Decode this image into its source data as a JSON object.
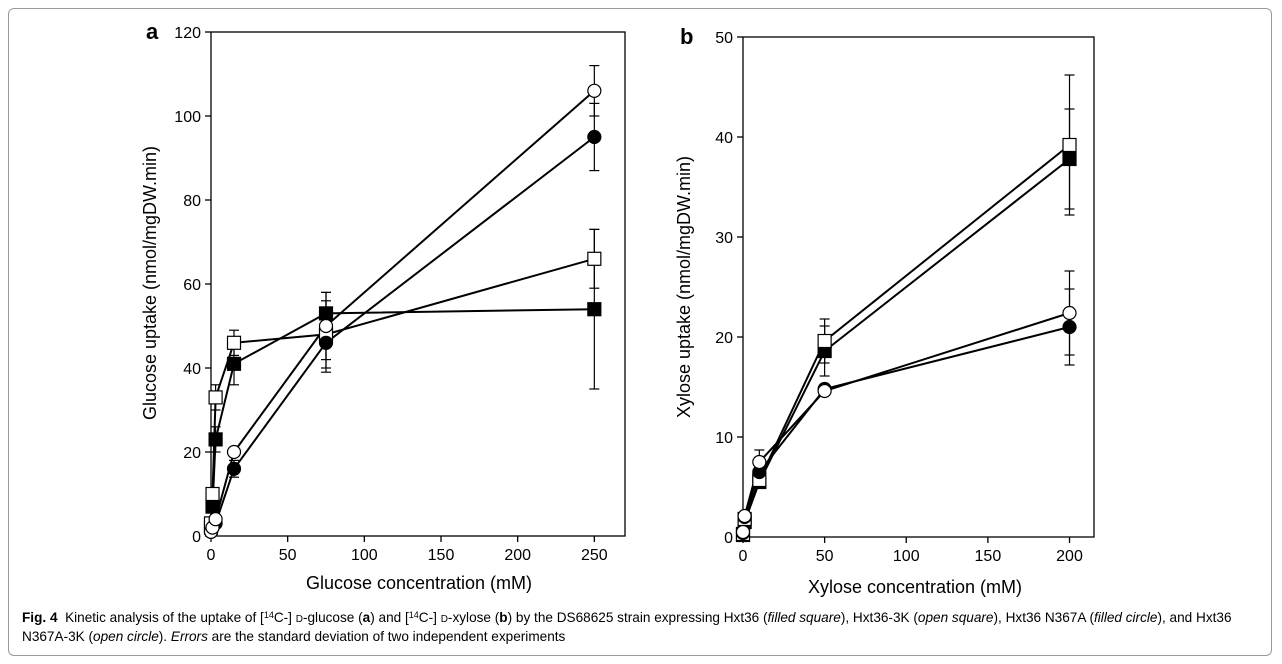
{
  "chart_data": [
    {
      "type": "line",
      "panel": "a",
      "xlabel": "Glucose concentration (mM)",
      "ylabel": "Glucose uptake (nmol/mgDW.min)",
      "xlim": [
        0,
        270
      ],
      "ylim": [
        0,
        120
      ],
      "xticks": [
        0,
        50,
        100,
        150,
        200,
        250
      ],
      "yticks": [
        0,
        20,
        40,
        60,
        80,
        100,
        120
      ],
      "grid": false,
      "legend": "none",
      "series": [
        {
          "marker": "filled-square",
          "x": [
            0,
            1,
            3,
            15,
            75,
            250
          ],
          "y": [
            2,
            7,
            23,
            41,
            53,
            54
          ],
          "err": [
            0,
            1,
            3,
            5,
            5,
            19
          ]
        },
        {
          "marker": "open-square",
          "x": [
            0,
            1,
            3,
            15,
            75,
            250
          ],
          "y": [
            3,
            10,
            33,
            46,
            48,
            66
          ],
          "err": [
            0,
            1,
            3,
            3,
            8,
            7
          ]
        },
        {
          "marker": "filled-circle",
          "x": [
            0,
            1,
            3,
            15,
            75,
            250
          ],
          "y": [
            1,
            2,
            3,
            16,
            46,
            95
          ],
          "err": [
            0,
            0,
            0,
            2,
            7,
            8
          ]
        },
        {
          "marker": "open-circle",
          "x": [
            0,
            1,
            3,
            15,
            75,
            250
          ],
          "y": [
            1,
            2,
            4,
            20,
            50,
            106
          ],
          "err": [
            0,
            0,
            0,
            0,
            8,
            6
          ]
        }
      ]
    },
    {
      "type": "line",
      "panel": "b",
      "xlabel": "Xylose concentration (mM)",
      "ylabel": "Xylose uptake (nmol/mgDW.min)",
      "xlim": [
        0,
        215
      ],
      "ylim": [
        0,
        50
      ],
      "xticks": [
        0,
        50,
        100,
        150,
        200
      ],
      "yticks": [
        0,
        10,
        20,
        30,
        40,
        50
      ],
      "grid": false,
      "legend": "none",
      "series": [
        {
          "marker": "filled-square",
          "x": [
            0,
            1,
            10,
            50,
            200
          ],
          "y": [
            0.2,
            1.5,
            5.5,
            18.6,
            37.8
          ],
          "err": [
            0,
            0,
            0,
            2.5,
            5
          ]
        },
        {
          "marker": "open-square",
          "x": [
            0,
            1,
            10,
            50,
            200
          ],
          "y": [
            0.3,
            1.8,
            5.7,
            19.6,
            39.2
          ],
          "err": [
            0,
            0,
            0,
            2.2,
            7
          ]
        },
        {
          "marker": "filled-circle",
          "x": [
            0,
            1,
            10,
            50,
            200
          ],
          "y": [
            0.4,
            2.0,
            6.5,
            14.8,
            21.0
          ],
          "err": [
            0,
            0,
            0,
            0,
            3.8
          ]
        },
        {
          "marker": "open-circle",
          "x": [
            0,
            1,
            10,
            50,
            200
          ],
          "y": [
            0.5,
            2.1,
            7.5,
            14.6,
            22.4
          ],
          "err": [
            0,
            0,
            1.2,
            0,
            4.2
          ]
        }
      ]
    }
  ],
  "caption": {
    "fig_label": "Fig. 4",
    "t1": "Kinetic analysis of the uptake of [",
    "sup1": "14",
    "t2": "C-] ",
    "d1": "d",
    "t3": "-glucose (",
    "a": "a",
    "t4": ") and [",
    "sup2": "14",
    "t5": "C-] ",
    "d2": "d",
    "t6": "-xylose (",
    "b": "b",
    "t7": ") by the DS68625 strain expressing Hxt36 (",
    "i1": "filled square",
    "t8": "), Hxt36-3K (",
    "i2": "open square",
    "t9": "), Hxt36 N367A (",
    "i3": "filled circle",
    "t10": "), and Hxt36 N367A-3K (",
    "i4": "open circle",
    "t11": "). ",
    "i5": "Errors",
    "t12": " are the standard deviation of two independent experiments"
  }
}
